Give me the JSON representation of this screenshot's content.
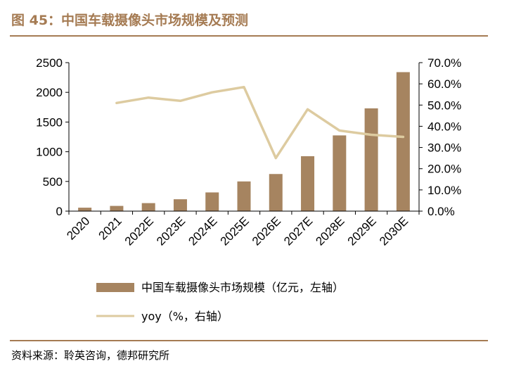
{
  "figure": {
    "title": "图 45：中国车载摄像头市场规模及预测",
    "source": "资料来源：聆英咨询，德邦研究所"
  },
  "colors": {
    "accent": "#A57B53",
    "bar": "#A68460",
    "line": "#DDCBA0"
  },
  "chart_data": {
    "type": "bar",
    "title": "",
    "xlabel": "",
    "ylabel": "",
    "categories": [
      "2020",
      "2021",
      "2022E",
      "2023E",
      "2024E",
      "2025E",
      "2026E",
      "2027E",
      "2028E",
      "2029E",
      "2030E"
    ],
    "ylim": [
      0,
      2500
    ],
    "y2lim": [
      0,
      70
    ],
    "y_ticks": [
      "0",
      "500",
      "1000",
      "1500",
      "2000",
      "2500"
    ],
    "y2_ticks": [
      "0.0%",
      "10.0%",
      "20.0%",
      "30.0%",
      "40.0%",
      "50.0%",
      "60.0%",
      "70.0%"
    ],
    "series": [
      {
        "name": "中国车载摄像头市场规模（亿元，左轴）",
        "type": "bar",
        "axis": "left",
        "values": [
          58,
          88,
          135,
          200,
          315,
          500,
          625,
          925,
          1275,
          1730,
          2340
        ]
      },
      {
        "name": "yoy（%，右轴）",
        "type": "line",
        "axis": "right",
        "values": [
          null,
          51.0,
          53.5,
          52.0,
          56.0,
          58.5,
          25.0,
          48.0,
          38.0,
          36.0,
          35.0
        ]
      }
    ],
    "grid": false,
    "legend": "bottom"
  }
}
